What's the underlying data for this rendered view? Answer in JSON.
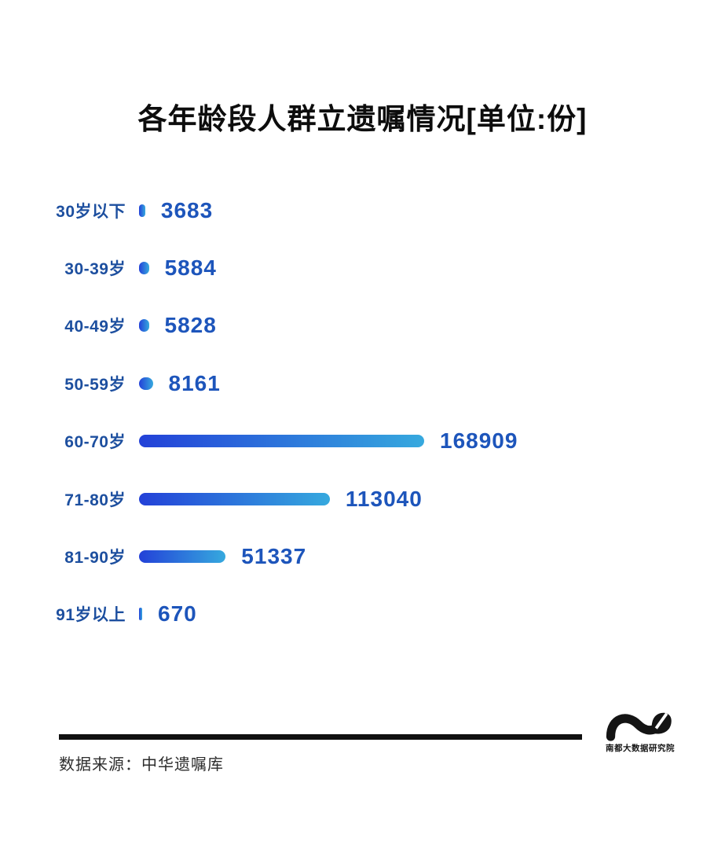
{
  "title": "各年龄段人群立遗嘱情况[单位:份]",
  "chart_data": {
    "type": "bar",
    "orientation": "horizontal",
    "title": "各年龄段人群立遗嘱情况[单位:份]",
    "unit": "份",
    "categories": [
      "30岁以下",
      "30-39岁",
      "40-49岁",
      "50-59岁",
      "60-70岁",
      "71-80岁",
      "81-90岁",
      "91岁以上"
    ],
    "values": [
      3683,
      5884,
      5828,
      8161,
      168909,
      113040,
      51337,
      670
    ],
    "value_labels": [
      "3683",
      "5884",
      "5828",
      "8161",
      "168909",
      "113040",
      "51337",
      "670"
    ],
    "xlim": [
      0,
      168909
    ],
    "grid": false,
    "legend": "none",
    "value_label_position": "right-of-bar",
    "colors": {
      "bar_gradient_start": "#2341d8",
      "bar_gradient_end": "#36a9de",
      "category_label": "#1d4f9f",
      "value_label": "#1d55bb",
      "title": "#0d0d0d"
    }
  },
  "footer": {
    "divider_color": "#101010",
    "source_label": "数据来源：中华遗嘱库",
    "logo_text": "南都大数据研究院",
    "logo_color": "#141414"
  }
}
